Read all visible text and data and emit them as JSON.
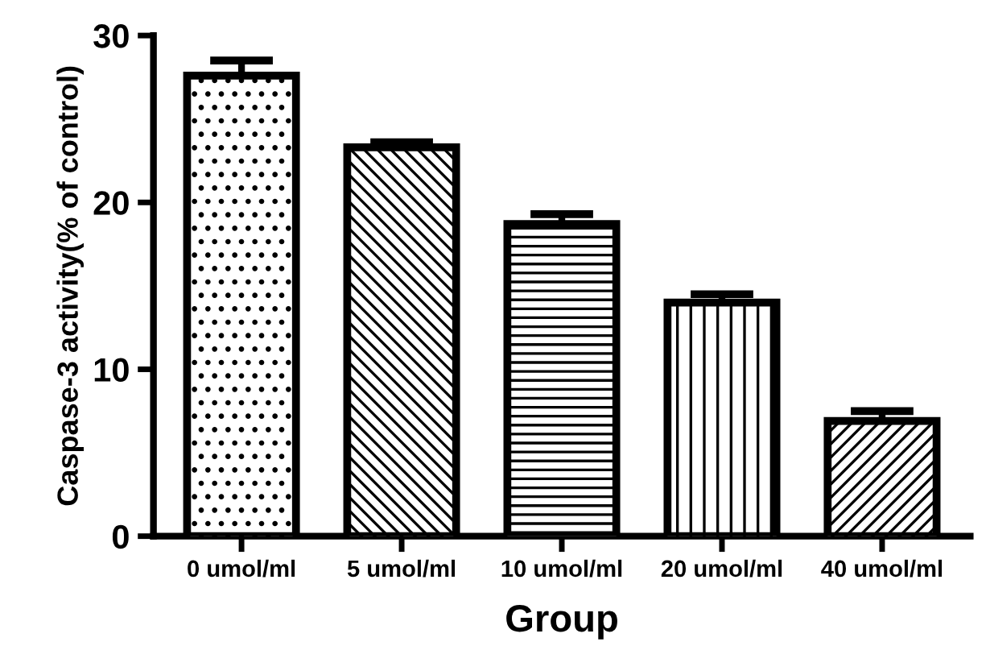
{
  "chart_data": {
    "type": "bar",
    "xlabel": "Group",
    "ylabel": "Caspase-3 activity(% of control)",
    "categories": [
      "0 umol/ml",
      "5 umol/ml",
      "10 umol/ml",
      "20 umol/ml",
      "40 umol/ml"
    ],
    "values": [
      27.6,
      23.3,
      18.7,
      14.0,
      6.9
    ],
    "errors": [
      0.9,
      0.3,
      0.6,
      0.5,
      0.6
    ],
    "color": "#000000",
    "ylim": [
      0,
      30
    ],
    "yticks": [
      0,
      10,
      20,
      30
    ],
    "grid": false,
    "legend": false
  }
}
